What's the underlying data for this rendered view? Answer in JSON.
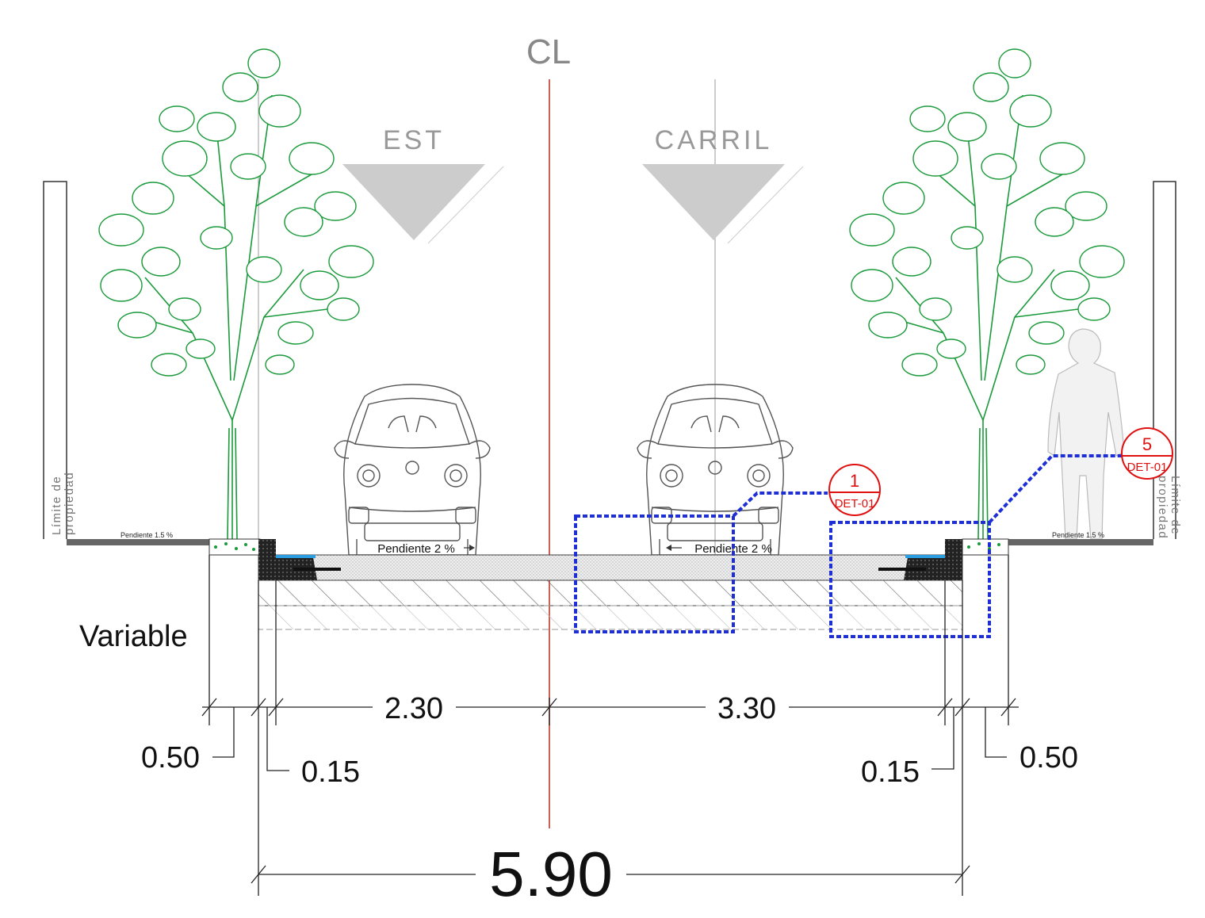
{
  "centerline_symbol": "CL",
  "lanes": {
    "parking_label": "EST",
    "travel_label": "CARRIL"
  },
  "property_limit": {
    "left_label": [
      "Límite de",
      "propiedad"
    ],
    "right_label": [
      "Límite de",
      "propiedad"
    ]
  },
  "sidewalk_slope": {
    "left": "Pendiente 1.5 %",
    "right": "Pendiente 1.5 %"
  },
  "road_slope": {
    "left": "Pendiente 2 %",
    "right": "Pendiente 2 %"
  },
  "variable_label": "Variable",
  "dimensions": {
    "sidewalk_left": "0.50",
    "curb_left": "0.15",
    "lane_left": "2.30",
    "lane_right": "3.30",
    "curb_right": "0.15",
    "sidewalk_right": "0.50",
    "total": "5.90"
  },
  "detail_callouts": [
    {
      "number": "1",
      "ref": "DET-01"
    },
    {
      "number": "5",
      "ref": "DET-01"
    }
  ],
  "colors": {
    "tree": "#1a9a3a",
    "centerline": "#c0392b",
    "detail": "#1f2fd6",
    "callout": "#e01010",
    "lane_arrow": "#c8c8c8"
  },
  "icons": [
    "tree-icon",
    "car-icon",
    "person-silhouette-icon",
    "vw-logo-icon"
  ]
}
